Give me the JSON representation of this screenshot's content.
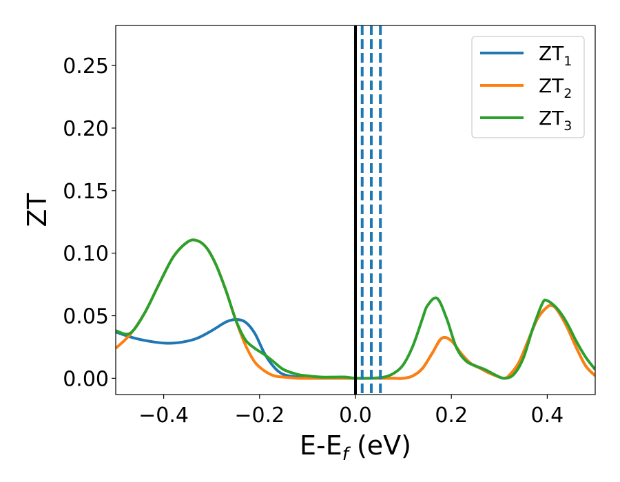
{
  "chart_data": {
    "type": "line",
    "title": "",
    "xlabel": {
      "main": "E-E",
      "sub": "f",
      "suffix": " (eV)"
    },
    "ylabel": "ZT",
    "xlim": [
      -0.5,
      0.5
    ],
    "ylim": [
      -0.013,
      0.282
    ],
    "xticks": [
      -0.4,
      -0.2,
      0.0,
      0.2,
      0.4
    ],
    "xtick_labels": [
      "−0.4",
      "−0.2",
      "0.0",
      "0.2",
      "0.4"
    ],
    "yticks": [
      0.0,
      0.05,
      0.1,
      0.15,
      0.2,
      0.25
    ],
    "ytick_labels": [
      "0.00",
      "0.05",
      "0.10",
      "0.15",
      "0.20",
      "0.25"
    ],
    "grid": false,
    "legend": "top-right",
    "vlines": [
      {
        "x": 0.0,
        "style": "solid",
        "color": "#000000"
      },
      {
        "x": 0.014,
        "style": "dashed",
        "color": "#1f77b4"
      },
      {
        "x": 0.033,
        "style": "dashed",
        "color": "#1f77b4"
      },
      {
        "x": 0.052,
        "style": "dashed",
        "color": "#1f77b4"
      }
    ],
    "series": [
      {
        "name": "ZT",
        "sub": "1",
        "color": "#1f77b4",
        "x": [
          -0.5,
          -0.46,
          -0.42,
          -0.39,
          -0.36,
          -0.33,
          -0.3,
          -0.27,
          -0.25,
          -0.23,
          -0.21,
          -0.19,
          -0.17,
          -0.15,
          -0.12,
          -0.1,
          -0.05,
          0.0,
          0.05,
          0.08,
          0.1,
          0.12,
          0.14,
          0.16,
          0.18,
          0.2,
          0.22,
          0.24,
          0.26,
          0.28,
          0.3,
          0.31,
          0.32,
          0.34,
          0.36,
          0.38,
          0.4,
          0.41,
          0.42,
          0.44,
          0.46,
          0.48,
          0.5
        ],
        "y": [
          0.037,
          0.032,
          0.029,
          0.028,
          0.029,
          0.032,
          0.038,
          0.045,
          0.047,
          0.045,
          0.036,
          0.02,
          0.009,
          0.003,
          0.001,
          0.0,
          0.0,
          0.0,
          0.0,
          0.0,
          0.0,
          0.002,
          0.008,
          0.02,
          0.032,
          0.03,
          0.02,
          0.012,
          0.008,
          0.004,
          0.001,
          0.0,
          0.002,
          0.012,
          0.03,
          0.048,
          0.057,
          0.058,
          0.055,
          0.042,
          0.025,
          0.01,
          0.002
        ]
      },
      {
        "name": "ZT",
        "sub": "2",
        "color": "#ff7f0e",
        "x": [
          -0.5,
          -0.47,
          -0.44,
          -0.41,
          -0.38,
          -0.35,
          -0.33,
          -0.31,
          -0.29,
          -0.27,
          -0.25,
          -0.23,
          -0.21,
          -0.19,
          -0.17,
          -0.15,
          -0.12,
          -0.1,
          -0.05,
          0.0,
          0.05,
          0.08,
          0.1,
          0.12,
          0.14,
          0.16,
          0.18,
          0.2,
          0.22,
          0.24,
          0.26,
          0.28,
          0.3,
          0.31,
          0.32,
          0.34,
          0.36,
          0.38,
          0.4,
          0.41,
          0.42,
          0.44,
          0.46,
          0.48,
          0.5
        ],
        "y": [
          0.024,
          0.035,
          0.052,
          0.075,
          0.097,
          0.109,
          0.11,
          0.104,
          0.09,
          0.07,
          0.047,
          0.027,
          0.013,
          0.006,
          0.002,
          0.001,
          0.0,
          0.0,
          0.0,
          0.0,
          0.0,
          0.0,
          0.0,
          0.002,
          0.008,
          0.02,
          0.032,
          0.03,
          0.02,
          0.012,
          0.008,
          0.004,
          0.001,
          0.0,
          0.002,
          0.012,
          0.03,
          0.048,
          0.057,
          0.058,
          0.055,
          0.042,
          0.025,
          0.01,
          0.002
        ]
      },
      {
        "name": "ZT",
        "sub": "3",
        "color": "#2ca02c",
        "x": [
          -0.5,
          -0.47,
          -0.44,
          -0.41,
          -0.38,
          -0.35,
          -0.33,
          -0.31,
          -0.29,
          -0.27,
          -0.25,
          -0.23,
          -0.21,
          -0.19,
          -0.17,
          -0.15,
          -0.12,
          -0.1,
          -0.07,
          -0.04,
          -0.02,
          0.0,
          0.03,
          0.06,
          0.08,
          0.1,
          0.12,
          0.14,
          0.15,
          0.17,
          0.19,
          0.21,
          0.23,
          0.25,
          0.27,
          0.29,
          0.31,
          0.33,
          0.35,
          0.37,
          0.39,
          0.4,
          0.42,
          0.44,
          0.46,
          0.48,
          0.5
        ],
        "y": [
          0.038,
          0.036,
          0.052,
          0.075,
          0.097,
          0.109,
          0.11,
          0.104,
          0.09,
          0.07,
          0.047,
          0.031,
          0.024,
          0.019,
          0.013,
          0.007,
          0.003,
          0.002,
          0.001,
          0.001,
          0.001,
          0.0,
          0.0,
          0.001,
          0.004,
          0.011,
          0.026,
          0.048,
          0.058,
          0.064,
          0.048,
          0.025,
          0.014,
          0.01,
          0.007,
          0.003,
          0.0,
          0.003,
          0.016,
          0.04,
          0.06,
          0.062,
          0.056,
          0.045,
          0.03,
          0.017,
          0.007
        ]
      }
    ]
  }
}
